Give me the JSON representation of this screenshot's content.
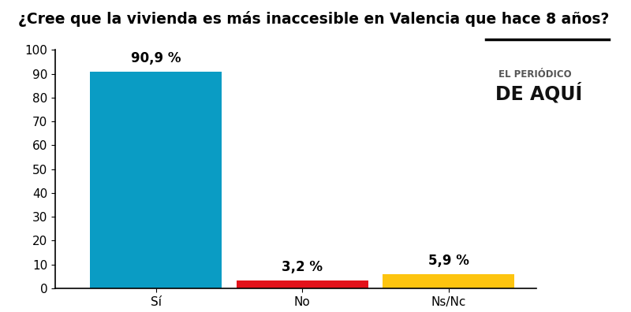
{
  "chart_data": {
    "type": "bar",
    "title": "¿Cree que la vivienda es más inaccesible en Valencia que hace 8 años?",
    "categories": [
      "Sí",
      "No",
      "Ns/Nc"
    ],
    "values": [
      90.9,
      3.2,
      5.9
    ],
    "value_labels": [
      "90,9 %",
      "3,2 %",
      "5,9 %"
    ],
    "colors": [
      "#0a9cc4",
      "#e3121b",
      "#fdc40f"
    ],
    "ylim": [
      0,
      100
    ],
    "yticks": [
      0,
      10,
      20,
      30,
      40,
      50,
      60,
      70,
      80,
      90,
      100
    ],
    "grid": false,
    "data_labels": true,
    "annotations": [
      "EL PERIÓDICO",
      "DE AQUÍ"
    ]
  }
}
